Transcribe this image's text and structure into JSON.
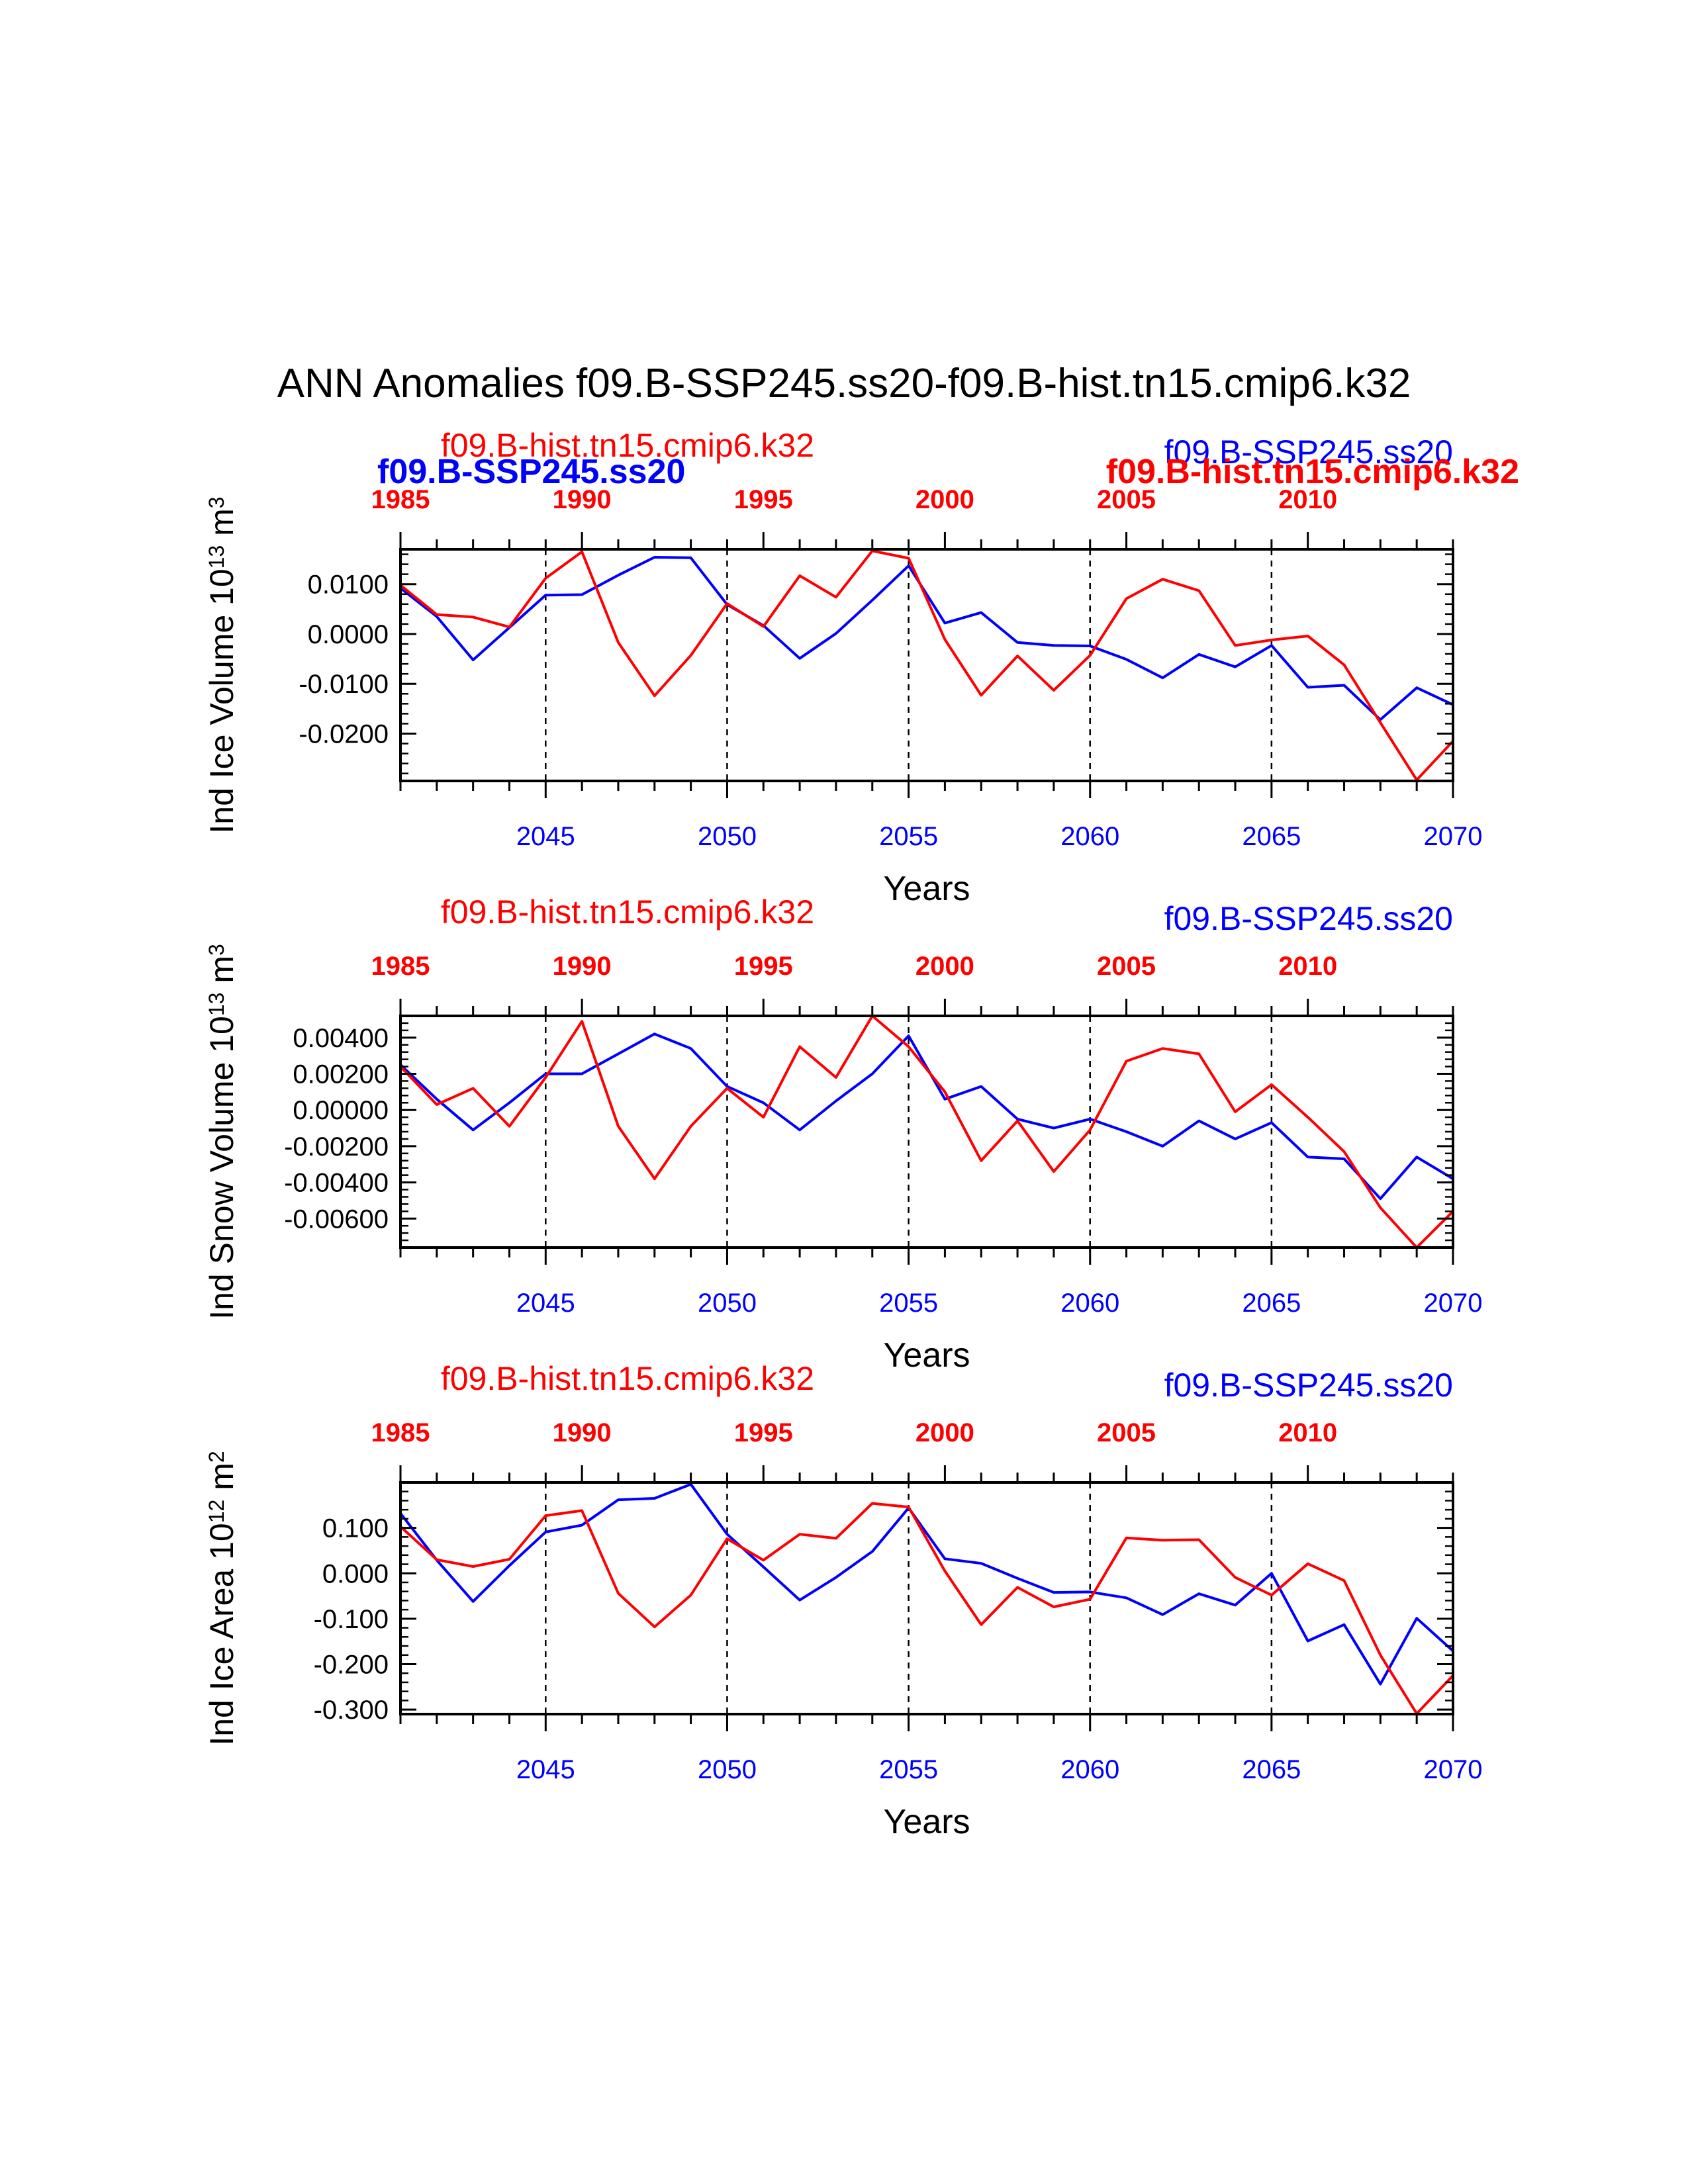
{
  "title": "ANN Anomalies f09.B-SSP245.ss20-f09.B-hist.tn15.cmip6.k32",
  "colors": {
    "case": "#0000ff",
    "control": "#ff0000",
    "axis": "#000000",
    "background": "#ffffff"
  },
  "xlabel": "Years",
  "overlap_labels": {
    "bold_case": "f09.B-SSP245.ss20",
    "bold_control": "f09.B-hist.tn15.cmip6.k32"
  },
  "chart_data": [
    {
      "type": "line",
      "ylabel": "Ind Ice Volume 10",
      "ylabel_exp": "13",
      "ylabel_unit": " m",
      "ylabel_unit_exp": "3",
      "ylim": [
        -0.0295,
        0.017
      ],
      "yticks": [
        0.01,
        0.0,
        -0.01,
        -0.02
      ],
      "ytick_labels": [
        "0.0100",
        "0.0000",
        "-0.0100",
        "-0.0200"
      ],
      "case_label": "f09.B-SSP245.ss20",
      "control_label": "f09.B-hist.tn15.cmip6.k32",
      "x_bottom_range": [
        2041,
        2070
      ],
      "x_bottom_ticks": [
        "2045",
        "2050",
        "2055",
        "2060",
        "2065",
        "2070"
      ],
      "x_top_range": [
        1985,
        2014
      ],
      "x_top_ticks": [
        "1985",
        "1990",
        "1995",
        "2000",
        "2005",
        "2010"
      ],
      "series": [
        {
          "role": "case",
          "values": [
            0.0092,
            0.0035,
            -0.0052,
            0.0013,
            0.0078,
            0.0079,
            0.0118,
            0.0154,
            0.0153,
            0.0059,
            0.0017,
            -0.0049,
            0.0001,
            0.0068,
            0.0137,
            0.0022,
            0.0043,
            -0.0017,
            -0.0023,
            -0.0024,
            -0.0051,
            -0.0088,
            -0.0041,
            -0.0066,
            -0.0023,
            -0.0107,
            -0.0103,
            -0.0172,
            -0.0108,
            -0.0142
          ]
        },
        {
          "role": "control",
          "values": [
            0.0098,
            0.0039,
            0.0034,
            0.0014,
            0.0112,
            0.0165,
            -0.0017,
            -0.0124,
            -0.0043,
            0.0061,
            0.0015,
            0.0117,
            0.0074,
            0.0167,
            0.0152,
            -0.0011,
            -0.0123,
            -0.0044,
            -0.0113,
            -0.0043,
            0.0071,
            0.011,
            0.0087,
            -0.0023,
            -0.0012,
            -0.0004,
            -0.0062,
            -0.0178,
            -0.0293,
            -0.0215
          ]
        }
      ]
    },
    {
      "type": "line",
      "ylabel": "Ind Snow Volume 10",
      "ylabel_exp": "13",
      "ylabel_unit": " m",
      "ylabel_unit_exp": "3",
      "ylim": [
        -0.0076,
        0.0052
      ],
      "yticks": [
        0.004,
        0.002,
        0.0,
        -0.002,
        -0.004,
        -0.006
      ],
      "ytick_labels": [
        "0.00400",
        "0.00200",
        "0.00000",
        "-0.00200",
        "-0.00400",
        "-0.00600"
      ],
      "case_label": "f09.B-SSP245.ss20",
      "control_label": "f09.B-hist.tn15.cmip6.k32",
      "x_bottom_range": [
        2041,
        2070
      ],
      "x_bottom_ticks": [
        "2045",
        "2050",
        "2055",
        "2060",
        "2065",
        "2070"
      ],
      "x_top_range": [
        1985,
        2014
      ],
      "x_top_ticks": [
        "1985",
        "1990",
        "1995",
        "2000",
        "2005",
        "2010"
      ],
      "series": [
        {
          "role": "case",
          "values": [
            0.0025,
            0.0006,
            -0.0011,
            0.0004,
            0.002,
            0.002,
            0.0031,
            0.0042,
            0.0034,
            0.0013,
            0.0004,
            -0.0011,
            0.0005,
            0.002,
            0.0041,
            0.0006,
            0.0013,
            -0.0005,
            -0.001,
            -0.0005,
            -0.0012,
            -0.002,
            -0.0006,
            -0.0016,
            -0.0007,
            -0.0026,
            -0.0027,
            -0.0049,
            -0.0026,
            -0.0038
          ]
        },
        {
          "role": "control",
          "values": [
            0.0024,
            0.0003,
            0.0012,
            -0.0009,
            0.0018,
            0.0049,
            -0.0009,
            -0.0038,
            -0.0009,
            0.0012,
            -0.0004,
            0.0035,
            0.0018,
            0.0052,
            0.0035,
            0.001,
            -0.0028,
            -0.0006,
            -0.0034,
            -0.0011,
            0.0027,
            0.0034,
            0.0031,
            -0.0001,
            0.0014,
            -0.0004,
            -0.0023,
            -0.0054,
            -0.0076,
            -0.0056
          ]
        }
      ]
    },
    {
      "type": "line",
      "ylabel": "Ind Ice Area 10",
      "ylabel_exp": "12",
      "ylabel_unit": " m",
      "ylabel_unit_exp": "2",
      "ylim": [
        -0.31,
        0.2
      ],
      "yticks": [
        0.1,
        0.0,
        -0.1,
        -0.2,
        -0.3
      ],
      "ytick_labels": [
        "0.100",
        "0.000",
        "-0.100",
        "-0.200",
        "-0.300"
      ],
      "case_label": "f09.B-SSP245.ss20",
      "control_label": "f09.B-hist.tn15.cmip6.k32",
      "x_bottom_range": [
        2041,
        2070
      ],
      "x_bottom_ticks": [
        "2045",
        "2050",
        "2055",
        "2060",
        "2065",
        "2070"
      ],
      "x_top_range": [
        1985,
        2014
      ],
      "x_top_ticks": [
        "1985",
        "1990",
        "1995",
        "2000",
        "2005",
        "2010"
      ],
      "series": [
        {
          "role": "case",
          "values": [
            0.132,
            0.029,
            -0.062,
            0.017,
            0.091,
            0.106,
            0.162,
            0.165,
            0.196,
            0.086,
            0.014,
            -0.059,
            -0.009,
            0.048,
            0.144,
            0.032,
            0.022,
            -0.011,
            -0.042,
            -0.041,
            -0.054,
            -0.091,
            -0.045,
            -0.07,
            0.0,
            -0.149,
            -0.113,
            -0.244,
            -0.099,
            -0.171
          ]
        },
        {
          "role": "control",
          "values": [
            0.103,
            0.03,
            0.015,
            0.031,
            0.127,
            0.138,
            -0.044,
            -0.118,
            -0.048,
            0.076,
            0.029,
            0.086,
            0.077,
            0.154,
            0.146,
            0.005,
            -0.113,
            -0.031,
            -0.074,
            -0.057,
            0.078,
            0.073,
            0.074,
            -0.009,
            -0.048,
            0.021,
            -0.016,
            -0.18,
            -0.309,
            -0.225
          ]
        }
      ]
    }
  ]
}
